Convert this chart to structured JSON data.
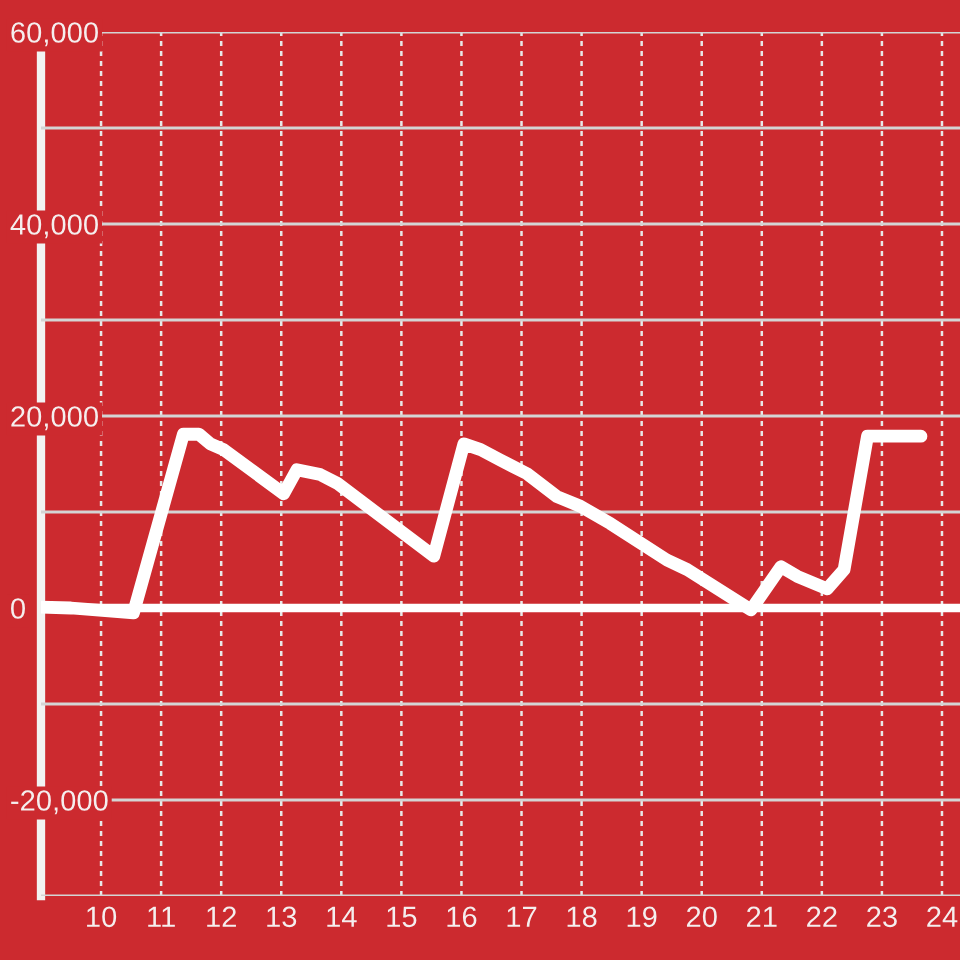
{
  "chart_data": {
    "type": "line",
    "x": [
      9.0,
      9.5,
      10.54,
      11.37,
      11.63,
      11.82,
      12.04,
      13.04,
      13.26,
      13.65,
      13.93,
      15.54,
      16.04,
      16.32,
      16.65,
      17.09,
      17.59,
      17.98,
      18.48,
      19.42,
      19.76,
      20.82,
      21.32,
      21.59,
      22.09,
      22.37,
      22.76,
      23.65
    ],
    "series": [
      {
        "color": "#ffffff",
        "values": [
          100,
          0,
          -500,
          18100,
          18100,
          17100,
          16500,
          11900,
          14400,
          13900,
          13000,
          5400,
          17100,
          16500,
          15400,
          14000,
          11600,
          10600,
          8800,
          5000,
          4000,
          -200,
          4300,
          3300,
          2000,
          4000,
          17900,
          17900
        ]
      }
    ],
    "xlim": [
      9,
      24.3
    ],
    "xticks": [
      10,
      11,
      12,
      13,
      14,
      15,
      16,
      17,
      18,
      19,
      20,
      21,
      22,
      23,
      24
    ],
    "ylim": [
      -30000,
      60000
    ],
    "yticks": [
      {
        "value": -30000,
        "label": null
      },
      {
        "value": -20000,
        "label": "-20,000"
      },
      {
        "value": -10000,
        "label": null
      },
      {
        "value": 0,
        "label": "0"
      },
      {
        "value": 10000,
        "label": null
      },
      {
        "value": 20000,
        "label": "20,000"
      },
      {
        "value": 30000,
        "label": null
      },
      {
        "value": 40000,
        "label": "40,000"
      },
      {
        "value": 50000,
        "label": null
      },
      {
        "value": 60000,
        "label": "60,000"
      }
    ],
    "grid": true,
    "line_style": "solid",
    "ref_lines": [
      {
        "axis": "y",
        "value": 0,
        "color": "#ffffff"
      }
    ]
  }
}
